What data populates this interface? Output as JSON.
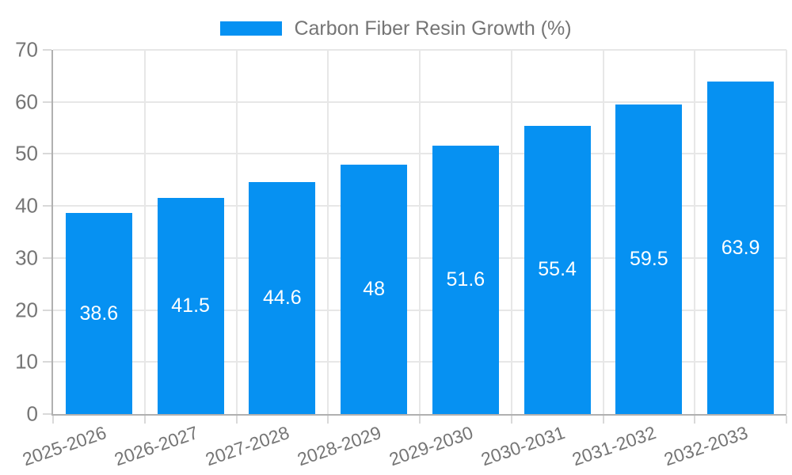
{
  "legend": {
    "label": "Carbon Fiber Resin Growth (%)"
  },
  "colors": {
    "bar": "#0691f2",
    "text": "#757575",
    "grid": "#e7e7e7",
    "axis": "#b0b0b0",
    "tick": "#d9d9d9",
    "value_label": "#ffffff",
    "background": "#ffffff"
  },
  "chart_data": {
    "type": "bar",
    "title": "",
    "categories": [
      "2025-2026",
      "2026-2027",
      "2027-2028",
      "2028-2029",
      "2029-2030",
      "2030-2031",
      "2031-2032",
      "2032-2033"
    ],
    "series": [
      {
        "name": "Carbon Fiber Resin Growth (%)",
        "values": [
          38.6,
          41.5,
          44.6,
          48,
          51.6,
          55.4,
          59.5,
          63.9
        ]
      }
    ],
    "value_labels": [
      "38.6",
      "41.5",
      "44.6",
      "48",
      "51.6",
      "55.4",
      "59.5",
      "63.9"
    ],
    "xlabel": "",
    "ylabel": "",
    "ylim": [
      0,
      70
    ],
    "yticks": [
      0,
      10,
      20,
      30,
      40,
      50,
      60,
      70
    ],
    "grid": true,
    "legend_position": "top-center",
    "x_tick_rotation_deg": -19
  }
}
